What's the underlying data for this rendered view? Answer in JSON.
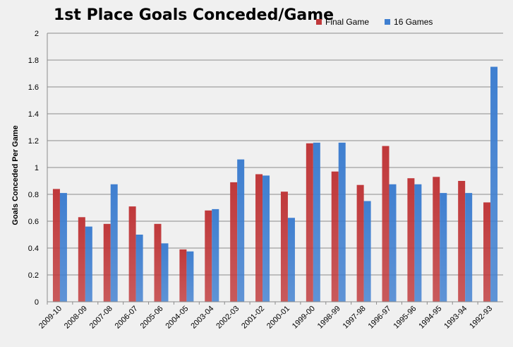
{
  "chart_data": {
    "type": "bar",
    "title": "1st Place Goals Conceded/Game",
    "xlabel": "",
    "ylabel": "Goals Conceded Per Game",
    "ylim": [
      0,
      2
    ],
    "ytick_step": 0.2,
    "yticks": [
      "0",
      "0.2",
      "0.4",
      "0.6",
      "0.8",
      "1",
      "1.2",
      "1.4",
      "1.6",
      "1.8",
      "2"
    ],
    "grid": true,
    "legend_position": "top-right",
    "categories": [
      "2009-10",
      "2008-09",
      "2007-08",
      "2006-07",
      "2005-06",
      "2004-05",
      "2003-04",
      "2002-03",
      "2001-02",
      "2000-01",
      "1999-00",
      "1998-99",
      "1997-98",
      "1996-97",
      "1995-96",
      "1994-95",
      "1993-94",
      "1992-93"
    ],
    "series": [
      {
        "name": "Final Game",
        "color": "#c0393b",
        "values": [
          0.84,
          0.63,
          0.58,
          0.71,
          0.58,
          0.39,
          0.68,
          0.89,
          0.95,
          0.82,
          1.18,
          0.97,
          0.87,
          1.16,
          0.92,
          0.93,
          0.9,
          0.74
        ]
      },
      {
        "name": "16 Games",
        "color": "#3f7fd0",
        "values": [
          0.81,
          0.56,
          0.875,
          0.5,
          0.435,
          0.375,
          0.69,
          1.06,
          0.94,
          0.625,
          1.185,
          1.185,
          0.75,
          0.875,
          0.875,
          0.81,
          0.81,
          1.75
        ]
      }
    ]
  }
}
